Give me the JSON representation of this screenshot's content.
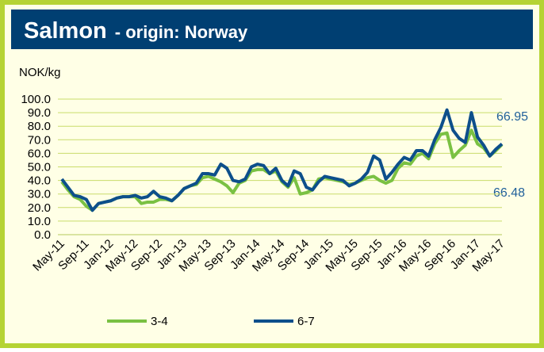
{
  "chart_data": {
    "type": "line",
    "title": "Salmon",
    "subtitle": "- origin: Norway",
    "y_label": "NOK/kg",
    "categories": [
      "May-11",
      null,
      null,
      null,
      "Sep-11",
      null,
      null,
      null,
      "Jan-12",
      null,
      null,
      null,
      "May-12",
      null,
      null,
      null,
      "Sep-12",
      null,
      null,
      null,
      "Jan-13",
      null,
      null,
      null,
      "May-13",
      null,
      null,
      null,
      "Sep-13",
      null,
      null,
      null,
      "Jan-14",
      null,
      null,
      null,
      "May-14",
      null,
      null,
      null,
      "Sep-14",
      null,
      null,
      null,
      "Jan-15",
      null,
      null,
      null,
      "May-15",
      null,
      null,
      null,
      "Sep-15",
      null,
      null,
      null,
      "Jan-16",
      null,
      null,
      null,
      "May-16",
      null,
      null,
      null,
      "Sep-16",
      null,
      null,
      null,
      "Jan-17",
      null,
      null,
      null,
      "May-17"
    ],
    "series": [
      {
        "name": "3-4",
        "color": "#7ac143",
        "values": [
          39,
          33,
          28,
          26,
          21,
          18,
          23,
          24,
          25,
          27,
          28,
          28,
          28,
          23,
          24,
          24,
          26,
          26,
          25,
          29,
          34,
          36,
          37,
          42,
          43,
          41,
          39,
          36,
          31,
          38,
          40,
          47,
          48,
          48,
          45,
          47,
          39,
          35,
          42,
          30,
          31,
          33,
          41,
          42,
          41,
          40,
          39,
          37,
          38,
          40,
          42,
          43,
          40,
          38,
          40,
          49,
          53,
          52,
          58,
          60,
          56,
          67,
          74,
          75,
          57,
          62,
          66,
          77,
          67,
          64,
          58,
          62,
          66.48
        ]
      },
      {
        "name": "6-7",
        "color": "#0d4f8b",
        "values": [
          41,
          35,
          29,
          28,
          26,
          18,
          23,
          24,
          25,
          27,
          28,
          28,
          29,
          27,
          28,
          32,
          28,
          27,
          25,
          29,
          34,
          36,
          38,
          45,
          45,
          44,
          52,
          49,
          40,
          39,
          41,
          50,
          52,
          51,
          45,
          49,
          40,
          36,
          47,
          45,
          35,
          33,
          39,
          43,
          42,
          41,
          40,
          36,
          38,
          41,
          46,
          58,
          55,
          41,
          46,
          52,
          57,
          55,
          62,
          62,
          58,
          70,
          79,
          92,
          77,
          71,
          68,
          90,
          72,
          66,
          58,
          63,
          66.95
        ]
      }
    ],
    "ylim": [
      0,
      100
    ],
    "yticks": [
      {
        "value": 0,
        "label": "0.0"
      },
      {
        "value": 10,
        "label": "10.0"
      },
      {
        "value": 20,
        "label": "20.0"
      },
      {
        "value": 30,
        "label": "30.0"
      },
      {
        "value": 40,
        "label": "40.0"
      },
      {
        "value": 50,
        "label": "50.0"
      },
      {
        "value": 60,
        "label": "60.0"
      },
      {
        "value": 70,
        "label": "70.0"
      },
      {
        "value": 80,
        "label": "80.0"
      },
      {
        "value": 90,
        "label": "90.0"
      },
      {
        "value": 100,
        "label": "100.0"
      }
    ],
    "grid": true
  }
}
